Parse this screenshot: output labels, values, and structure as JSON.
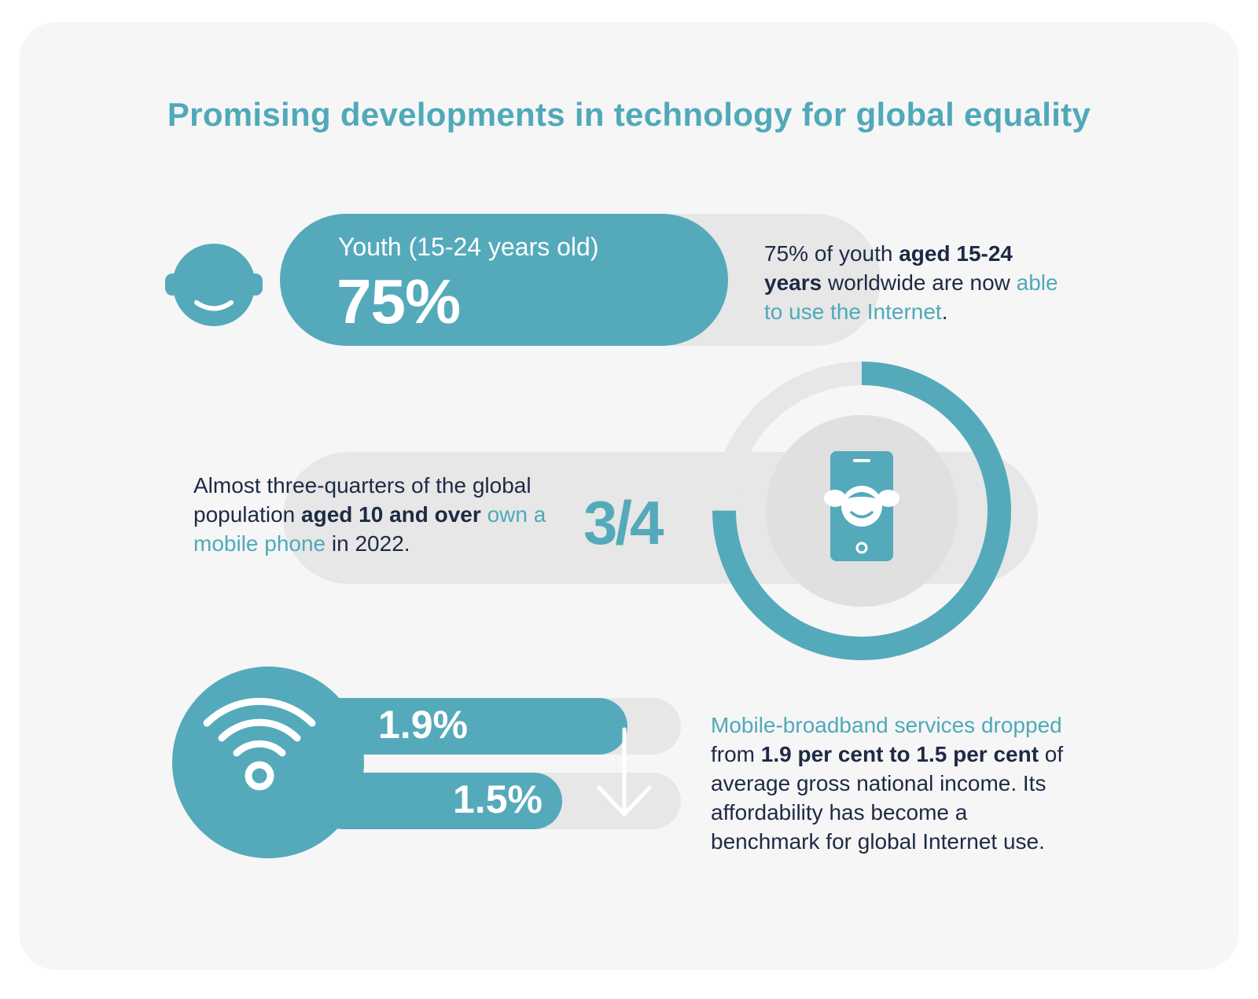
{
  "title": "Promising developments in technology for global equality",
  "youth": {
    "label": "Youth (15-24 years old)",
    "value_text": "75%",
    "fraction": 0.75,
    "desc_pre": "75% of youth ",
    "desc_bold": "aged 15-24 years",
    "desc_mid": " worldwide are now ",
    "desc_hl": "able to use the Internet",
    "desc_end": ".",
    "icon": "youth-face-icon"
  },
  "mobile": {
    "desc_pre": "Almost three-quarters of the global population ",
    "desc_bold": "aged 10 and over",
    "desc_mid": " ",
    "desc_hl": "own a mobile phone",
    "desc_end": " in 2022.",
    "fraction_text": "3/4",
    "fraction": 0.75,
    "icon": "smartphone-girl-icon"
  },
  "broadband": {
    "value_before_text": "1.9%",
    "value_after_text": "1.5%",
    "value_before": 1.9,
    "value_after": 1.5,
    "desc_hl": "Mobile-broadband services dropped",
    "desc_pre": " from ",
    "desc_bold": "1.9 per cent to 1.5 per cent",
    "desc_end": " of average gross national income. Its affordability has become a benchmark for global Internet use.",
    "icon": "wifi-icon",
    "arrow_icon": "arrow-down-icon"
  },
  "colors": {
    "accent": "#54aabb",
    "title": "#4fa9b9",
    "track": "#e6e7e6",
    "text": "#1e2a44",
    "background": "#f6f6f6"
  }
}
